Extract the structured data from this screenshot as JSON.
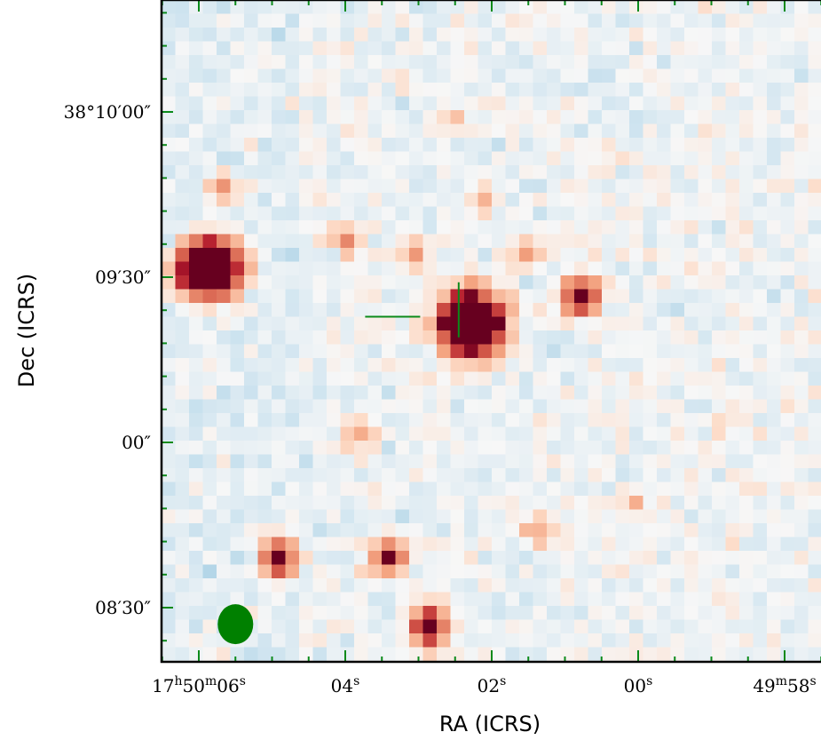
{
  "chart_data": {
    "type": "heatmap",
    "title": "",
    "xlabel": "RA (ICRS)",
    "ylabel": "Dec (ICRS)",
    "colormap": "diverging blue-white-red (RdBu reversed)",
    "grid": false,
    "x_ticks": [
      {
        "pre": "17",
        "s1": "h",
        "m": "50",
        "s2": "m",
        "s": "06",
        "s3": "s",
        "ra_seconds": 6
      },
      {
        "pre": "",
        "s1": "",
        "m": "",
        "s2": "",
        "s": "04",
        "s3": "s",
        "ra_seconds": 4
      },
      {
        "pre": "",
        "s1": "",
        "m": "",
        "s2": "",
        "s": "02",
        "s3": "s",
        "ra_seconds": 2
      },
      {
        "pre": "",
        "s1": "",
        "m": "",
        "s2": "",
        "s": "00",
        "s3": "s",
        "ra_seconds": 0
      },
      {
        "pre": "",
        "s1": "",
        "m": "49",
        "s2": "m",
        "s": "58",
        "s3": "s",
        "ra_seconds": -2
      }
    ],
    "y_ticks": [
      {
        "label": "38°10′00″",
        "offset_arcsec": 90
      },
      {
        "label": "09′30″",
        "offset_arcsec": 60
      },
      {
        "label": "00″",
        "offset_arcsec": 30
      },
      {
        "label": "08′30″",
        "offset_arcsec": 0
      }
    ],
    "sources": [
      {
        "col": 3,
        "row": 19,
        "amp": 2.8,
        "sx": 1.4,
        "sy": 1.3
      },
      {
        "col": 22,
        "row": 23,
        "amp": 3.0,
        "sx": 1.4,
        "sy": 1.4
      },
      {
        "col": 30,
        "row": 21,
        "amp": 1.3,
        "sx": 0.9,
        "sy": 0.9
      },
      {
        "col": 8,
        "row": 40,
        "amp": 1.3,
        "sx": 0.8,
        "sy": 0.9
      },
      {
        "col": 16,
        "row": 40,
        "amp": 1.0,
        "sx": 0.9,
        "sy": 0.8
      },
      {
        "col": 19,
        "row": 45,
        "amp": 1.4,
        "sx": 0.8,
        "sy": 1.0
      },
      {
        "col": 27,
        "row": 38,
        "amp": 0.45,
        "sx": 0.8,
        "sy": 0.8
      },
      {
        "col": 4,
        "row": 13,
        "amp": 0.5,
        "sx": 0.7,
        "sy": 0.7
      },
      {
        "col": 13,
        "row": 17,
        "amp": 0.45,
        "sx": 0.7,
        "sy": 0.7
      },
      {
        "col": 18,
        "row": 18,
        "amp": 0.5,
        "sx": 0.7,
        "sy": 0.7
      },
      {
        "col": 26,
        "row": 18,
        "amp": 0.45,
        "sx": 0.7,
        "sy": 0.7
      },
      {
        "col": 14,
        "row": 31,
        "amp": 0.45,
        "sx": 0.7,
        "sy": 0.8
      },
      {
        "col": 23,
        "row": 14,
        "amp": 0.4,
        "sx": 0.6,
        "sy": 0.7
      },
      {
        "col": 21,
        "row": 8,
        "amp": 0.35,
        "sx": 0.6,
        "sy": 0.6
      },
      {
        "col": 34,
        "row": 36,
        "amp": 0.35,
        "sx": 0.6,
        "sy": 0.6
      }
    ],
    "markers": {
      "vertical_tick": {
        "col": 21.6,
        "row": 24.5
      },
      "horizontal_tick": {
        "col": 18.8,
        "row": 23.0
      }
    },
    "beam": {
      "ra_seconds": 5.5,
      "offset_arcsec": -3,
      "major_arcsec": 3.3,
      "minor_arcsec": 2.8
    },
    "colors": {
      "overlay": "#0b8a1a",
      "beam_fill": "#008000",
      "frame": "#000000"
    }
  }
}
